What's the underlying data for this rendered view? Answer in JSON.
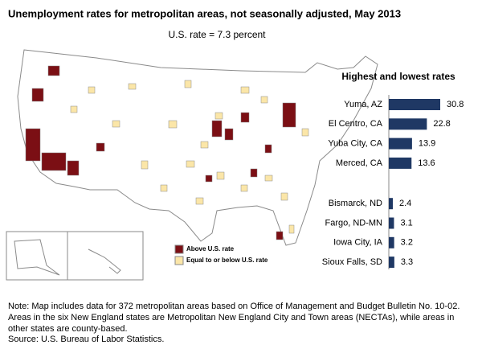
{
  "title": "Unemployment rates for metropolitan areas, not seasonally adjusted, May 2013",
  "subtitle": "U.S. rate = 7.3 percent",
  "map": {
    "legend": [
      {
        "label": "Above U.S. rate",
        "color": "#7b0f14"
      },
      {
        "label": "Equal to or below U.S. rate",
        "color": "#fbe6a8"
      }
    ]
  },
  "chart_data": {
    "type": "bar",
    "orientation": "horizontal",
    "title": "Highest and lowest rates",
    "categories": [
      "Yuma, AZ",
      "El Centro, CA",
      "Yuba City, CA",
      "Merced, CA",
      "Bismarck, ND",
      "Fargo, ND-MN",
      "Iowa City, IA",
      "Sioux Falls, SD"
    ],
    "values": [
      30.8,
      22.8,
      13.9,
      13.6,
      2.4,
      3.1,
      3.2,
      3.3
    ],
    "color": "#1f3864"
  },
  "note": "Note: Map includes data for 372 metropolitan areas based on Office of Management and Budget Bulletin No. 10-02. Areas in the six New England states are Metropolitan New England City and Town  areas (NECTAs), while areas in other states are county-based.",
  "source": "Source: U.S. Bureau of Labor Statistics."
}
